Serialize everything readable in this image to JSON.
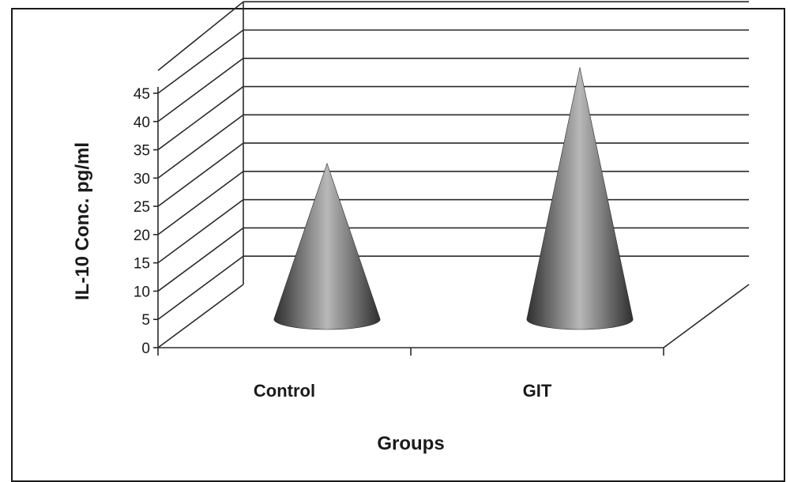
{
  "chart_data": {
    "type": "bar",
    "shape": "cone",
    "three_d": true,
    "categories": [
      "Control",
      "GIT"
    ],
    "values": [
      27,
      44
    ],
    "title": "",
    "xlabel": "Groups",
    "ylabel": "IL-10 Conc. pg/ml",
    "ylim": [
      0,
      45
    ],
    "yticks": [
      0,
      5,
      10,
      15,
      20,
      25,
      30,
      35,
      40,
      45
    ],
    "ytick_labels": [
      "0",
      "5",
      "10",
      "15",
      "20",
      "25",
      "30",
      "35",
      "40",
      "45"
    ],
    "grid": true,
    "legend": "none",
    "colors": {
      "cone_dark": "#2e2e2e",
      "cone_mid": "#6e6e6e",
      "cone_light": "#b8b8b8",
      "grid": "#2a2a2a"
    }
  }
}
